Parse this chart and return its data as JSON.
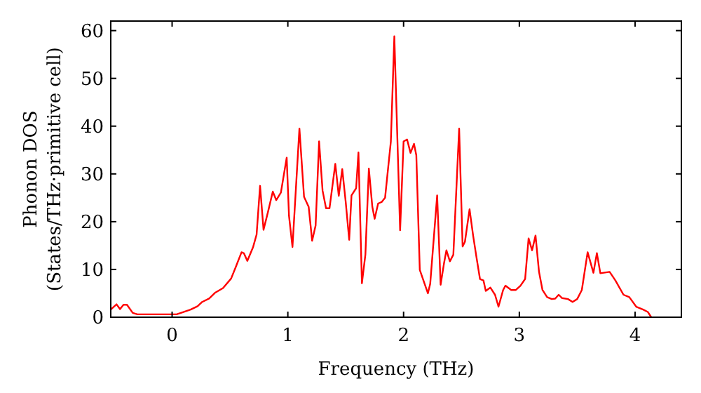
{
  "chart_data": {
    "type": "line",
    "xlabel": "Frequency (THz)",
    "ylabel": "Phonon DOS\n(States/THz·primitive cell)",
    "xlim": [
      -0.53,
      4.4
    ],
    "ylim": [
      0,
      62
    ],
    "xticks": [
      0,
      1,
      2,
      3,
      4
    ],
    "yticks": [
      0,
      10,
      20,
      30,
      40,
      50,
      60
    ],
    "grid": false,
    "marker": "none",
    "line_style": "solid",
    "series": [
      {
        "color": "#ff0000",
        "x": [
          -0.53,
          -0.48,
          -0.45,
          -0.42,
          -0.39,
          -0.34,
          -0.3,
          0.04,
          0.16,
          0.22,
          0.26,
          0.32,
          0.37,
          0.44,
          0.51,
          0.55,
          0.6,
          0.62,
          0.65,
          0.7,
          0.73,
          0.76,
          0.79,
          0.83,
          0.87,
          0.9,
          0.94,
          0.99,
          1.01,
          1.04,
          1.1,
          1.14,
          1.18,
          1.21,
          1.24,
          1.27,
          1.3,
          1.33,
          1.36,
          1.41,
          1.44,
          1.47,
          1.5,
          1.53,
          1.55,
          1.59,
          1.61,
          1.64,
          1.67,
          1.7,
          1.73,
          1.75,
          1.78,
          1.81,
          1.84,
          1.89,
          1.92,
          1.97,
          2.0,
          2.03,
          2.06,
          2.09,
          2.11,
          2.14,
          2.21,
          2.23,
          2.29,
          2.32,
          2.35,
          2.37,
          2.4,
          2.43,
          2.48,
          2.51,
          2.53,
          2.57,
          2.6,
          2.63,
          2.66,
          2.69,
          2.71,
          2.75,
          2.79,
          2.82,
          2.86,
          2.88,
          2.93,
          2.97,
          3.01,
          3.05,
          3.08,
          3.11,
          3.14,
          3.17,
          3.2,
          3.24,
          3.28,
          3.31,
          3.34,
          3.37,
          3.42,
          3.46,
          3.5,
          3.54,
          3.59,
          3.64,
          3.67,
          3.7,
          3.78,
          3.83,
          3.9,
          3.95,
          4.01,
          4.07,
          4.11,
          4.14
        ],
        "values": [
          1.6,
          2.7,
          1.7,
          2.6,
          2.6,
          0.9,
          0.6,
          0.6,
          1.6,
          2.3,
          3.2,
          3.9,
          5.1,
          6.1,
          8.1,
          10.5,
          13.6,
          13.4,
          11.8,
          14.7,
          17.3,
          27.5,
          18.3,
          22.2,
          26.3,
          24.5,
          26.1,
          33.4,
          21.2,
          14.7,
          39.5,
          25.2,
          23.1,
          16.0,
          19.2,
          36.8,
          26.5,
          22.8,
          22.8,
          32.1,
          25.4,
          31.0,
          24.1,
          16.2,
          25.5,
          27.0,
          34.5,
          7.1,
          13.1,
          31.1,
          23.1,
          20.6,
          23.8,
          24.1,
          25.0,
          36.8,
          58.8,
          18.2,
          36.8,
          37.2,
          34.4,
          36.3,
          33.9,
          9.9,
          5.0,
          7.0,
          25.5,
          6.8,
          11.4,
          14.0,
          11.7,
          13.1,
          39.5,
          14.8,
          15.8,
          22.6,
          17.2,
          12.5,
          8.0,
          7.7,
          5.5,
          6.2,
          4.7,
          2.2,
          5.7,
          6.6,
          5.7,
          5.7,
          6.6,
          8.0,
          16.5,
          14.0,
          17.1,
          9.5,
          5.7,
          4.2,
          3.8,
          3.9,
          4.7,
          4.0,
          3.8,
          3.2,
          3.8,
          5.7,
          13.6,
          9.3,
          13.4,
          9.2,
          9.5,
          7.7,
          4.7,
          4.2,
          2.2,
          1.6,
          1.1,
          0
        ]
      }
    ]
  }
}
